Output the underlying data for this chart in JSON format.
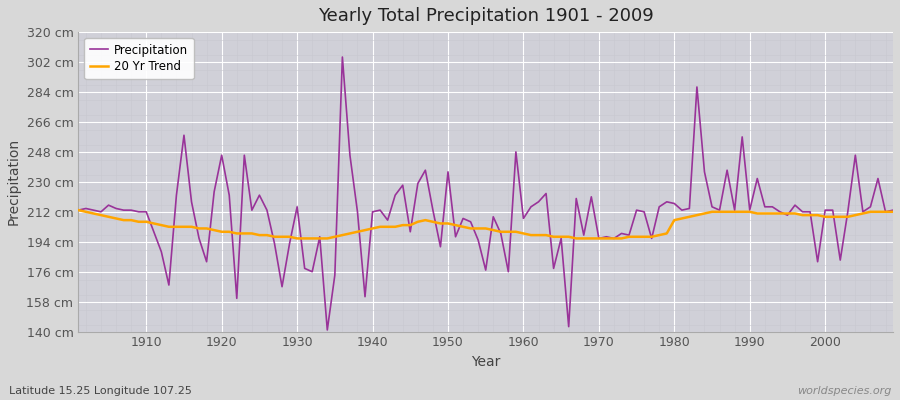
{
  "title": "Yearly Total Precipitation 1901 - 2009",
  "xlabel": "Year",
  "ylabel": "Precipitation",
  "subtitle": "Latitude 15.25 Longitude 107.25",
  "watermark": "worldspecies.org",
  "ylim": [
    140,
    320
  ],
  "yticks": [
    140,
    158,
    176,
    194,
    212,
    230,
    248,
    266,
    284,
    302,
    320
  ],
  "ytick_labels": [
    "140 cm",
    "158 cm",
    "176 cm",
    "194 cm",
    "212 cm",
    "230 cm",
    "248 cm",
    "266 cm",
    "284 cm",
    "302 cm",
    "320 cm"
  ],
  "xticks": [
    1910,
    1920,
    1930,
    1940,
    1950,
    1960,
    1970,
    1980,
    1990,
    2000
  ],
  "years": [
    1901,
    1902,
    1903,
    1904,
    1905,
    1906,
    1907,
    1908,
    1909,
    1910,
    1911,
    1912,
    1913,
    1914,
    1915,
    1916,
    1917,
    1918,
    1919,
    1920,
    1921,
    1922,
    1923,
    1924,
    1925,
    1926,
    1927,
    1928,
    1929,
    1930,
    1931,
    1932,
    1933,
    1934,
    1935,
    1936,
    1937,
    1938,
    1939,
    1940,
    1941,
    1942,
    1943,
    1944,
    1945,
    1946,
    1947,
    1948,
    1949,
    1950,
    1951,
    1952,
    1953,
    1954,
    1955,
    1956,
    1957,
    1958,
    1959,
    1960,
    1961,
    1962,
    1963,
    1964,
    1965,
    1966,
    1967,
    1968,
    1969,
    1970,
    1971,
    1972,
    1973,
    1974,
    1975,
    1976,
    1977,
    1978,
    1979,
    1980,
    1981,
    1982,
    1983,
    1984,
    1985,
    1986,
    1987,
    1988,
    1989,
    1990,
    1991,
    1992,
    1993,
    1994,
    1995,
    1996,
    1997,
    1998,
    1999,
    2000,
    2001,
    2002,
    2003,
    2004,
    2005,
    2006,
    2007,
    2008,
    2009
  ],
  "precipitation": [
    213,
    214,
    213,
    212,
    216,
    214,
    213,
    213,
    212,
    212,
    200,
    188,
    168,
    222,
    258,
    218,
    196,
    182,
    224,
    246,
    222,
    160,
    246,
    213,
    222,
    213,
    193,
    167,
    193,
    215,
    178,
    176,
    197,
    141,
    174,
    305,
    246,
    212,
    161,
    212,
    213,
    207,
    222,
    228,
    200,
    229,
    237,
    213,
    191,
    236,
    197,
    208,
    206,
    195,
    177,
    209,
    199,
    176,
    248,
    208,
    215,
    218,
    223,
    178,
    196,
    143,
    220,
    198,
    221,
    196,
    197,
    196,
    199,
    198,
    213,
    212,
    196,
    215,
    218,
    217,
    213,
    214,
    287,
    236,
    215,
    213,
    237,
    213,
    257,
    213,
    232,
    215,
    215,
    212,
    210,
    216,
    212,
    212,
    182,
    213,
    213,
    183,
    212,
    246,
    212,
    215,
    232,
    212,
    213
  ],
  "trend": [
    213,
    212,
    211,
    210,
    209,
    208,
    207,
    207,
    206,
    206,
    205,
    204,
    203,
    203,
    203,
    203,
    202,
    202,
    201,
    200,
    200,
    199,
    199,
    199,
    198,
    198,
    197,
    197,
    197,
    196,
    196,
    196,
    196,
    196,
    197,
    198,
    199,
    200,
    201,
    202,
    203,
    203,
    203,
    204,
    204,
    206,
    207,
    206,
    205,
    205,
    204,
    203,
    202,
    202,
    202,
    201,
    200,
    200,
    200,
    199,
    198,
    198,
    198,
    197,
    197,
    197,
    196,
    196,
    196,
    196,
    196,
    196,
    196,
    197,
    197,
    197,
    197,
    198,
    199,
    207,
    208,
    209,
    210,
    211,
    212,
    212,
    212,
    212,
    212,
    212,
    211,
    211,
    211,
    211,
    211,
    211,
    210,
    210,
    210,
    209,
    209,
    209,
    209,
    210,
    211,
    212,
    212,
    212,
    212
  ],
  "precip_color": "#993399",
  "trend_color": "#FFA500",
  "bg_color": "#d8d8d8",
  "plot_bg_color": "#d0d0d8",
  "grid_major_color": "#ffffff",
  "grid_minor_color": "#c8c8d0",
  "title_color": "#222222",
  "label_color": "#444444",
  "tick_label_color": "#555555"
}
